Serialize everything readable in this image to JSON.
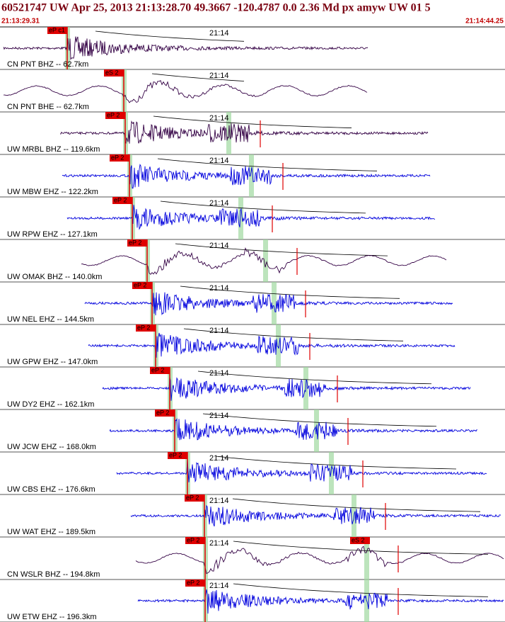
{
  "header": {
    "title": "60521747 UW Apr 25, 2013 21:13:28.70   49.3667 -120.4787  0.0 2.36 Md px amyw UW 01   5",
    "start_time": "21:13:29.31",
    "end_time": "21:14:44.25"
  },
  "traces": [
    {
      "label": "CN PNT BHZ -- 62.7km",
      "time_label": "21:14",
      "pick": "eP c1"
    },
    {
      "label": "CN PNT BHE -- 62.7km",
      "time_label": "21:14",
      "pick": "eS 2"
    },
    {
      "label": "UW MRBL BHZ -- 119.6km",
      "time_label": "21:14",
      "pick": "eP 2"
    },
    {
      "label": "UW MBW EHZ -- 122.2km",
      "time_label": "21:14",
      "pick": "eP 2"
    },
    {
      "label": "UW RPW EHZ -- 127.1km",
      "time_label": "21:14",
      "pick": "eP 2"
    },
    {
      "label": "UW OMAK BHZ -- 140.0km",
      "time_label": "21:14",
      "pick": "eP 2"
    },
    {
      "label": "UW NEL EHZ -- 144.5km",
      "time_label": "21:14",
      "pick": "eP 2"
    },
    {
      "label": "UW GPW EHZ -- 147.0km",
      "time_label": "21:14",
      "pick": "eP 2"
    },
    {
      "label": "UW DY2 EHZ -- 162.1km",
      "time_label": "21:14",
      "pick": "eP 2"
    },
    {
      "label": "UW JCW EHZ -- 168.0km",
      "time_label": "21:14",
      "pick": "eP 2"
    },
    {
      "label": "UW CBS EHZ -- 176.6km",
      "time_label": "21:14",
      "pick": "eP 2"
    },
    {
      "label": "UW WAT EHZ -- 189.5km",
      "time_label": "21:14",
      "pick": "eP 2"
    },
    {
      "label": "CN WSLR BHZ -- 194.8km",
      "time_label": "21:14",
      "pick": "eP 2",
      "pick2": "eS 2"
    },
    {
      "label": "UW ETW EHZ -- 196.3km",
      "time_label": "21:14",
      "pick": "eP 2"
    }
  ]
}
